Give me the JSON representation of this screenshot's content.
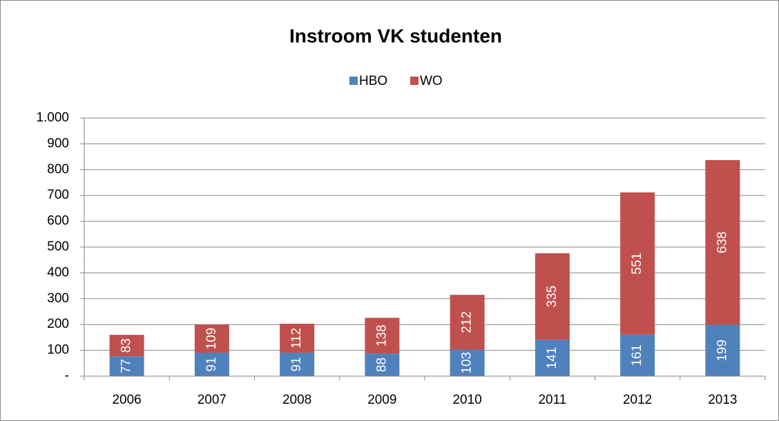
{
  "chart_data": {
    "type": "stacked_bar",
    "title": "Instroom VK studenten",
    "categories": [
      "2006",
      "2007",
      "2008",
      "2009",
      "2010",
      "2011",
      "2012",
      "2013"
    ],
    "series": [
      {
        "name": "HBO",
        "color": "#4f81bd",
        "values": [
          77,
          91,
          91,
          88,
          103,
          141,
          161,
          199
        ]
      },
      {
        "name": "WO",
        "color": "#c0504d",
        "values": [
          83,
          109,
          112,
          138,
          212,
          335,
          551,
          638
        ]
      }
    ],
    "ylim": [
      0,
      1000
    ],
    "yticks": [
      {
        "value": 0,
        "label": "-"
      },
      100,
      200,
      300,
      400,
      500,
      600,
      700,
      800,
      900,
      {
        "value": 1000,
        "label": "1.000"
      }
    ],
    "grid": true,
    "legend": "top"
  }
}
